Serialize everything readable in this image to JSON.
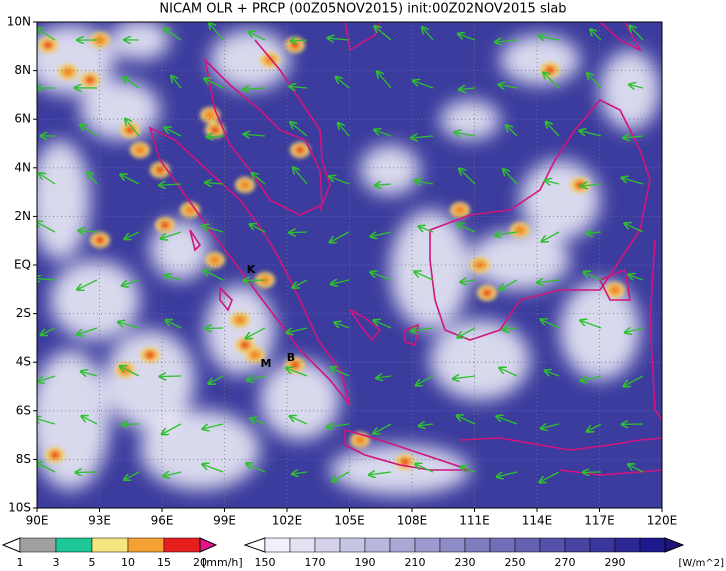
{
  "title": "NICAM OLR + PRCP (00Z05NOV2015) init:00Z02NOV2015 slab",
  "lat_labels": [
    "10N",
    "8N",
    "6N",
    "4N",
    "2N",
    "EQ",
    "2S",
    "4S",
    "6S",
    "8S",
    "10S"
  ],
  "lon_labels": [
    "90E",
    "93E",
    "96E",
    "99E",
    "102E",
    "105E",
    "108E",
    "111E",
    "114E",
    "117E",
    "120E"
  ],
  "markers": [
    "K",
    "M",
    "B"
  ],
  "precip_legend": {
    "labels": [
      "1",
      "3",
      "5",
      "10",
      "15",
      "20"
    ],
    "unit": "[mm/h]"
  },
  "olr_legend": {
    "labels": [
      "150",
      "170",
      "190",
      "210",
      "230",
      "250",
      "270",
      "290"
    ],
    "unit": "[W/m^2]"
  }
}
